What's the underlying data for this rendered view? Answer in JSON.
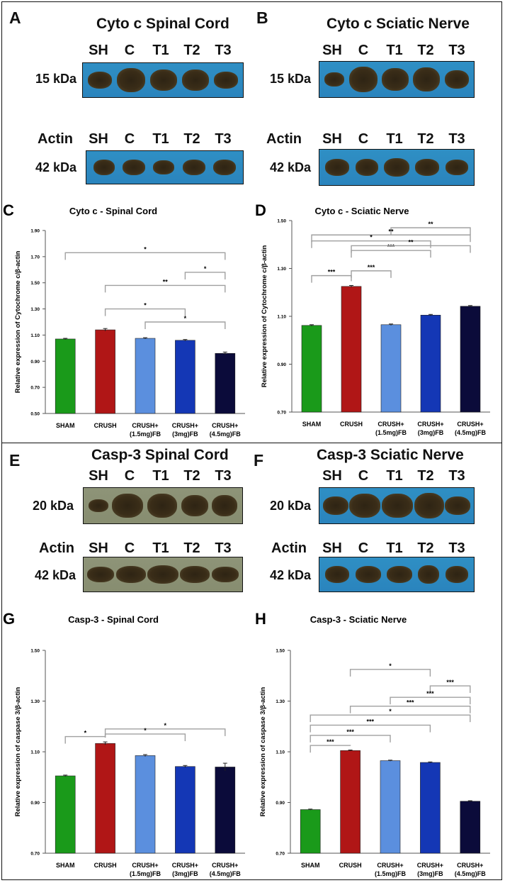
{
  "lanes": [
    "SH",
    "C",
    "T1",
    "T2",
    "T3"
  ],
  "blots": {
    "A": {
      "letter": "A",
      "title": "Cyto c Spinal Cord",
      "kda": "15 kDa",
      "actin_label": "Actin",
      "actin_kda": "42 kDa"
    },
    "B": {
      "letter": "B",
      "title": "Cyto c Sciatic Nerve",
      "kda": "15 kDa",
      "actin_label": "Actin",
      "actin_kda": "42 kDa"
    },
    "E": {
      "letter": "E",
      "title": "Casp-3 Spinal Cord",
      "kda": "20 kDa",
      "actin_label": "Actin",
      "actin_kda": "42 kDa"
    },
    "F": {
      "letter": "F",
      "title": "Casp-3 Sciatic Nerve",
      "kda": "20 kDa",
      "actin_label": "Actin",
      "actin_kda": "42 kDa"
    }
  },
  "colors": {
    "bar": [
      "#1a9a1a",
      "#b01616",
      "#5b8fde",
      "#1437b5",
      "#0b0b3a"
    ],
    "blot_blue": "#2c88c0",
    "blot_olive": "#8a9073",
    "bracket": "#a0a0a0"
  },
  "chart_data": [
    {
      "id": "C",
      "letter": "C",
      "type": "bar",
      "title": "Cyto c - Spinal Cord",
      "ylabel": "Relative expression of Cytochrome c/β-actin",
      "categories": [
        "SHAM",
        "CRUSH",
        "CRUSH+\n(1.5mg)FB",
        "CRUSH+\n(3mg)FB",
        "CRUSH+\n(4.5mg)FB"
      ],
      "values": [
        1.07,
        1.14,
        1.075,
        1.06,
        0.96
      ],
      "errors": [
        0.005,
        0.01,
        0.005,
        0.006,
        0.01
      ],
      "ylim": [
        0.5,
        1.9
      ],
      "yticks": [
        "0.50",
        "0.70",
        "0.90",
        "1.10",
        "1.30",
        "1.50",
        "1.70",
        "1.90"
      ],
      "brackets": [
        {
          "from": 0,
          "to": 4,
          "y": 1.73,
          "label": "*"
        },
        {
          "from": 3,
          "to": 4,
          "y": 1.58,
          "label": "*"
        },
        {
          "from": 1,
          "to": 4,
          "y": 1.48,
          "label": "**"
        },
        {
          "from": 1,
          "to": 3,
          "y": 1.3,
          "label": "*"
        },
        {
          "from": 2,
          "to": 4,
          "y": 1.2,
          "label": "*"
        }
      ]
    },
    {
      "id": "D",
      "letter": "D",
      "type": "bar",
      "title": "Cyto c - Sciatic Nerve",
      "ylabel": "Relative expression of Cytochrome c/β-actin",
      "categories": [
        "SHAM",
        "CRUSH",
        "CRUSH+\n(1.5mg)FB",
        "CRUSH+\n(3mg)FB",
        "CRUSH+\n(4.5mg)FB"
      ],
      "values": [
        1.062,
        1.225,
        1.065,
        1.105,
        1.142
      ],
      "errors": [
        0.003,
        0.004,
        0.003,
        0.003,
        0.003
      ],
      "ylim": [
        0.7,
        1.5
      ],
      "yticks": [
        "0.70",
        "0.90",
        "1.10",
        "1.30",
        "1.50"
      ],
      "brackets": [
        {
          "from": 2,
          "to": 4,
          "y": 1.47,
          "label": "**"
        },
        {
          "from": 0,
          "to": 4,
          "y": 1.44,
          "label": "**"
        },
        {
          "from": 0,
          "to": 3,
          "y": 1.415,
          "label": "*"
        },
        {
          "from": 1,
          "to": 3,
          "y": 1.375,
          "label": "***"
        },
        {
          "from": 1,
          "to": 4,
          "y": 1.395,
          "label": "**"
        },
        {
          "from": 0,
          "to": 1,
          "y": 1.27,
          "label": "***"
        },
        {
          "from": 1,
          "to": 2,
          "y": 1.29,
          "label": "***"
        }
      ]
    },
    {
      "id": "G",
      "letter": "G",
      "type": "bar",
      "title": "Casp-3 - Spinal Cord",
      "ylabel": "Relative expression of caspase 3/β-actin",
      "categories": [
        "SHAM",
        "CRUSH",
        "CRUSH+\n(1.5mg)FB",
        "CRUSH+\n(3mg)FB",
        "CRUSH+\n(4.5mg)FB"
      ],
      "values": [
        1.005,
        1.133,
        1.085,
        1.042,
        1.04
      ],
      "errors": [
        0.003,
        0.006,
        0.004,
        0.004,
        0.015
      ],
      "ylim": [
        0.7,
        1.5
      ],
      "yticks": [
        "0.70",
        "0.90",
        "1.10",
        "1.30",
        "1.50"
      ],
      "brackets": [
        {
          "from": 0,
          "to": 1,
          "y": 1.16,
          "label": "*"
        },
        {
          "from": 1,
          "to": 4,
          "y": 1.19,
          "label": "*"
        },
        {
          "from": 1,
          "to": 3,
          "y": 1.17,
          "label": "*"
        }
      ]
    },
    {
      "id": "H",
      "letter": "H",
      "type": "bar",
      "title": "Casp-3 - Sciatic Nerve",
      "ylabel": "Relative expression of caspase 3/β-actin",
      "categories": [
        "SHAM",
        "CRUSH",
        "CRUSH+\n(1.5mg)FB",
        "CRUSH+\n(3mg)FB",
        "CRUSH+\n(4.5mg)FB"
      ],
      "values": [
        0.872,
        1.105,
        1.065,
        1.058,
        0.905
      ],
      "errors": [
        0.002,
        0.002,
        0.002,
        0.002,
        0.002
      ],
      "ylim": [
        0.7,
        1.5
      ],
      "yticks": [
        "0.70",
        "0.90",
        "1.10",
        "1.30",
        "1.50"
      ],
      "brackets": [
        {
          "from": 1,
          "to": 3,
          "y": 1.425,
          "label": "*"
        },
        {
          "from": 3,
          "to": 4,
          "y": 1.36,
          "label": "***"
        },
        {
          "from": 2,
          "to": 4,
          "y": 1.315,
          "label": "***"
        },
        {
          "from": 1,
          "to": 4,
          "y": 1.28,
          "label": "***"
        },
        {
          "from": 0,
          "to": 4,
          "y": 1.245,
          "label": "*"
        },
        {
          "from": 0,
          "to": 3,
          "y": 1.205,
          "label": "***"
        },
        {
          "from": 0,
          "to": 2,
          "y": 1.165,
          "label": "***"
        },
        {
          "from": 0,
          "to": 1,
          "y": 1.125,
          "label": "***"
        }
      ]
    }
  ]
}
